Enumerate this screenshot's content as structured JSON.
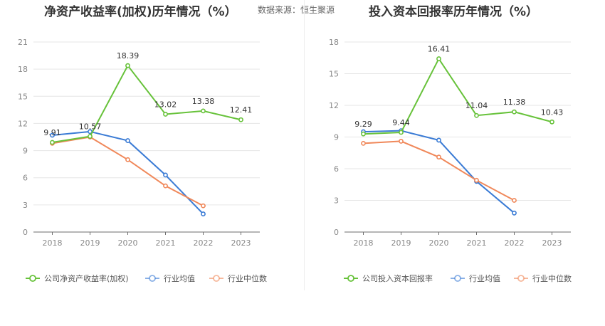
{
  "source_text": "数据来源：恒生聚源",
  "chart_data": [
    {
      "type": "line",
      "title": "净资产收益率(加权)历年情况（%）",
      "categories": [
        "2018",
        "2019",
        "2020",
        "2021",
        "2022",
        "2023"
      ],
      "ylim": [
        0,
        21
      ],
      "yticks": [
        0,
        3,
        6,
        9,
        12,
        15,
        18,
        21
      ],
      "grid": true,
      "legend_position": "bottom-left",
      "series": [
        {
          "name": "公司净资产收益率(加权)",
          "color": "#67c23a",
          "values": [
            9.91,
            10.57,
            18.39,
            13.02,
            13.38,
            12.41
          ],
          "labeled": true
        },
        {
          "name": "行业均值",
          "color": "#3a7bd5",
          "values": [
            10.7,
            11.1,
            10.1,
            6.3,
            2.0,
            null
          ],
          "labeled": false
        },
        {
          "name": "行业中位数",
          "color": "#f0885a",
          "values": [
            9.8,
            10.5,
            8.0,
            5.1,
            2.9,
            null
          ],
          "labeled": false
        }
      ]
    },
    {
      "type": "line",
      "title": "投入资本回报率历年情况（%）",
      "categories": [
        "2018",
        "2019",
        "2020",
        "2021",
        "2022",
        "2023"
      ],
      "ylim": [
        0,
        18
      ],
      "yticks": [
        0,
        3,
        6,
        9,
        12,
        15,
        18
      ],
      "grid": true,
      "legend_position": "bottom-left",
      "series": [
        {
          "name": "公司投入资本回报率",
          "color": "#67c23a",
          "values": [
            9.29,
            9.44,
            16.41,
            11.04,
            11.38,
            10.43
          ],
          "labeled": true
        },
        {
          "name": "行业均值",
          "color": "#3a7bd5",
          "values": [
            9.5,
            9.6,
            8.7,
            4.8,
            1.8,
            null
          ],
          "labeled": false
        },
        {
          "name": "行业中位数",
          "color": "#f0885a",
          "values": [
            8.4,
            8.6,
            7.1,
            4.9,
            3.0,
            null
          ],
          "labeled": false
        }
      ]
    }
  ]
}
